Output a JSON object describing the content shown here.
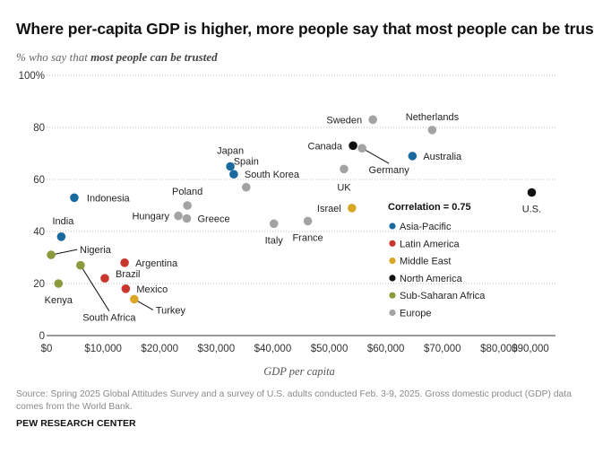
{
  "page": {
    "title": "Where per-capita GDP is higher, more people say that most people can be trusted",
    "subtitle_prefix": "% who say that ",
    "subtitle_emphasis": "most people can be trusted",
    "source": "Source: Spring 2025 Global Attitudes Survey and a survey of U.S. adults conducted Feb. 3-9, 2025. Gross domestic product (GDP) data comes from the World Bank.",
    "brand": "PEW RESEARCH CENTER"
  },
  "chart_data": {
    "type": "scatter",
    "xlabel": "GDP per capita",
    "xlim": [
      0,
      90000
    ],
    "ylim": [
      0,
      100
    ],
    "x_ticks": [
      {
        "value": 0,
        "label": "$0"
      },
      {
        "value": 10000,
        "label": "$10,000"
      },
      {
        "value": 20000,
        "label": "$20,000"
      },
      {
        "value": 30000,
        "label": "$30,000"
      },
      {
        "value": 40000,
        "label": "$40,000"
      },
      {
        "value": 50000,
        "label": "$50,000"
      },
      {
        "value": 60000,
        "label": "$60,000"
      },
      {
        "value": 70000,
        "label": "$70,000"
      },
      {
        "value": 80000,
        "label": "$80,000"
      },
      {
        "value": 90000,
        "label": "$90,000"
      }
    ],
    "y_ticks": [
      {
        "value": 0,
        "label": "0"
      },
      {
        "value": 20,
        "label": "20"
      },
      {
        "value": 40,
        "label": "40"
      },
      {
        "value": 60,
        "label": "60"
      },
      {
        "value": 80,
        "label": "80"
      },
      {
        "value": 100,
        "label": "100%"
      }
    ],
    "grid": "horizontal dotted",
    "annotation": "Correlation = 0.75",
    "legend_position": "right",
    "regions": [
      {
        "name": "Asia-Pacific",
        "color": "#1a6aa0"
      },
      {
        "name": "Latin America",
        "color": "#c9362e"
      },
      {
        "name": "Middle East",
        "color": "#d9a625"
      },
      {
        "name": "North America",
        "color": "#111111"
      },
      {
        "name": "Sub-Saharan Africa",
        "color": "#8a9a3c"
      },
      {
        "name": "Europe",
        "color": "#a3a3a3"
      }
    ],
    "points": [
      {
        "country": "Indonesia",
        "region": "Asia-Pacific",
        "x": 4900,
        "y": 53
      },
      {
        "country": "India",
        "region": "Asia-Pacific",
        "x": 2600,
        "y": 38
      },
      {
        "country": "Japan",
        "region": "Asia-Pacific",
        "x": 32500,
        "y": 65
      },
      {
        "country": "South Korea",
        "region": "Asia-Pacific",
        "x": 33100,
        "y": 62
      },
      {
        "country": "Australia",
        "region": "Asia-Pacific",
        "x": 64700,
        "y": 69
      },
      {
        "country": "Argentina",
        "region": "Latin America",
        "x": 13800,
        "y": 28
      },
      {
        "country": "Brazil",
        "region": "Latin America",
        "x": 10300,
        "y": 22
      },
      {
        "country": "Mexico",
        "region": "Latin America",
        "x": 14000,
        "y": 18
      },
      {
        "country": "Israel",
        "region": "Middle East",
        "x": 54000,
        "y": 49
      },
      {
        "country": "Turkey",
        "region": "Middle East",
        "x": 15500,
        "y": 14
      },
      {
        "country": "Canada",
        "region": "North America",
        "x": 54200,
        "y": 73
      },
      {
        "country": "U.S.",
        "region": "North America",
        "x": 85800,
        "y": 55
      },
      {
        "country": "Nigeria",
        "region": "Sub-Saharan Africa",
        "x": 800,
        "y": 31
      },
      {
        "country": "Kenya",
        "region": "Sub-Saharan Africa",
        "x": 2100,
        "y": 20
      },
      {
        "country": "South Africa",
        "region": "Sub-Saharan Africa",
        "x": 6000,
        "y": 27
      },
      {
        "country": "Sweden",
        "region": "Europe",
        "x": 57700,
        "y": 83
      },
      {
        "country": "Netherlands",
        "region": "Europe",
        "x": 68200,
        "y": 79
      },
      {
        "country": "Germany",
        "region": "Europe",
        "x": 55800,
        "y": 72
      },
      {
        "country": "UK",
        "region": "Europe",
        "x": 52600,
        "y": 64
      },
      {
        "country": "Spain",
        "region": "Europe",
        "x": 35300,
        "y": 57
      },
      {
        "country": "Poland",
        "region": "Europe",
        "x": 24900,
        "y": 50
      },
      {
        "country": "Hungary",
        "region": "Europe",
        "x": 23300,
        "y": 46
      },
      {
        "country": "Greece",
        "region": "Europe",
        "x": 24800,
        "y": 45
      },
      {
        "country": "Italy",
        "region": "Europe",
        "x": 40200,
        "y": 43
      },
      {
        "country": "France",
        "region": "Europe",
        "x": 46200,
        "y": 44
      }
    ]
  }
}
